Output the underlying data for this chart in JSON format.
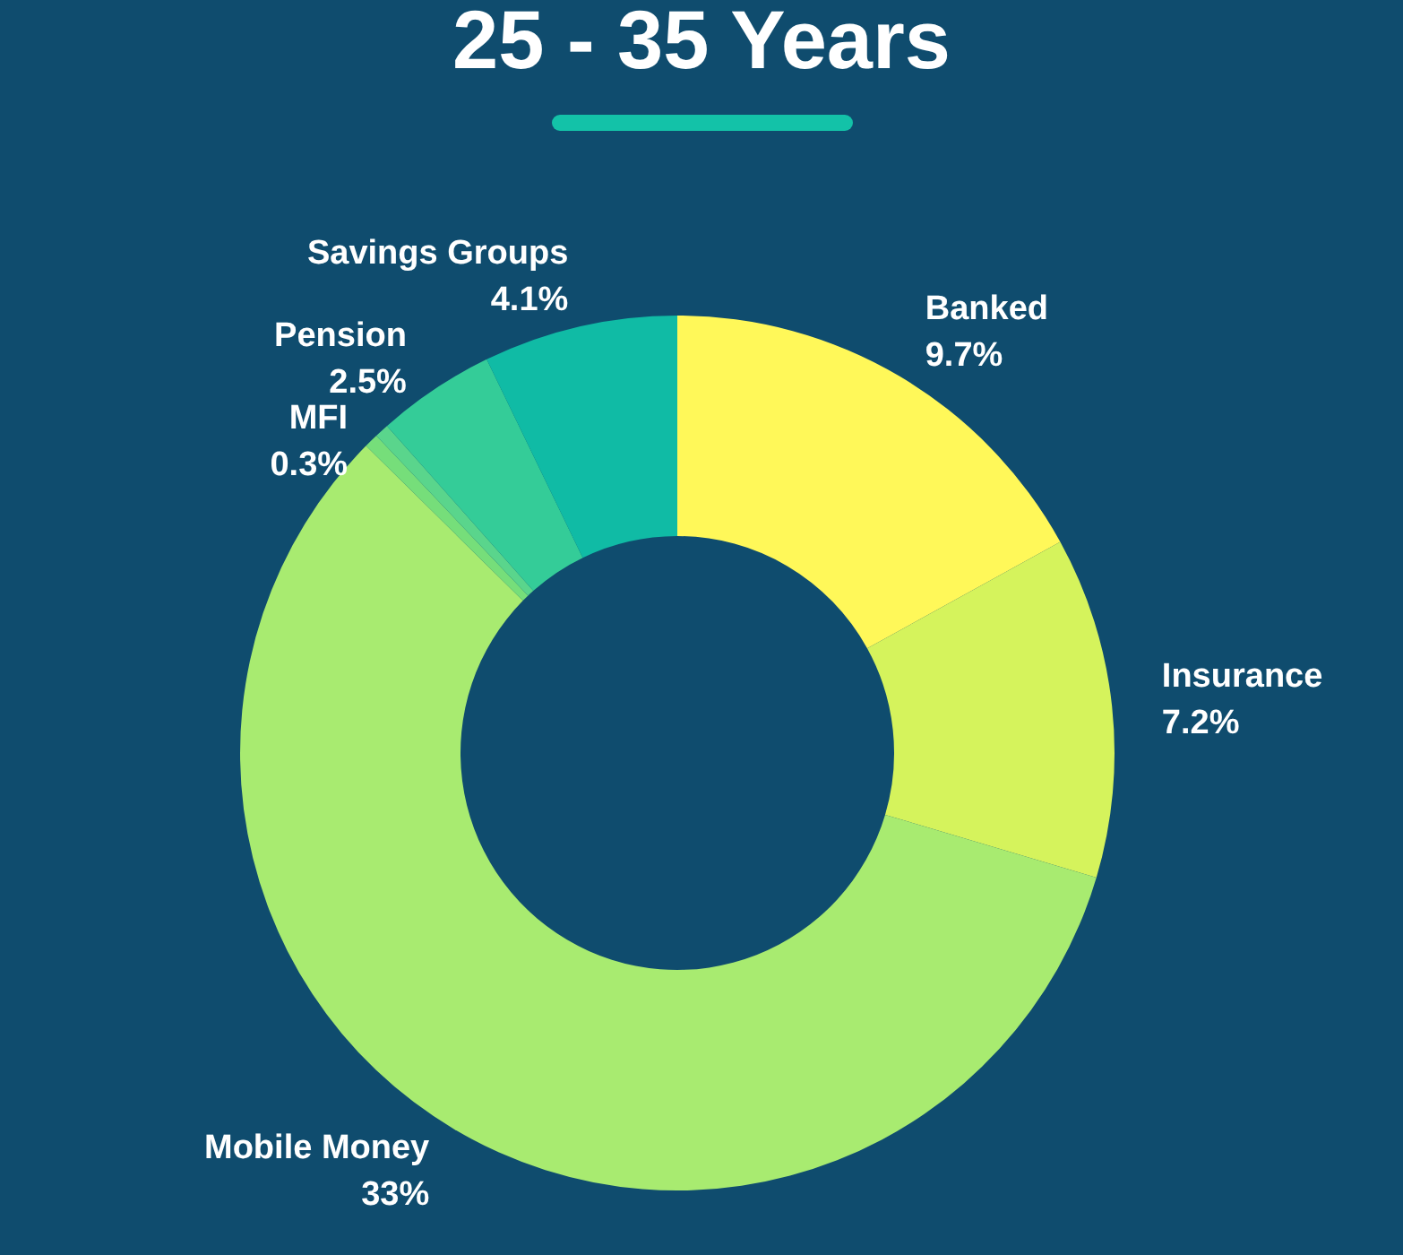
{
  "chart_data": {
    "type": "donut",
    "title": "25 - 35 Years",
    "categories": [
      "Banked",
      "Insurance",
      "Mobile Money",
      null,
      "MFI",
      "Pension",
      "Savings Groups"
    ],
    "values": [
      9.7,
      7.2,
      33,
      0.3,
      0.3,
      2.5,
      4.1
    ],
    "value_labels": [
      "9.7%",
      "7.2%",
      "33%",
      null,
      "0.3%",
      "2.5%",
      "4.1%"
    ],
    "colors": [
      "#fff859",
      "#d5f35c",
      "#a8eb70",
      "#76de7a",
      "#5ad58c",
      "#34cc98",
      "#10bba5"
    ],
    "legend": false
  }
}
